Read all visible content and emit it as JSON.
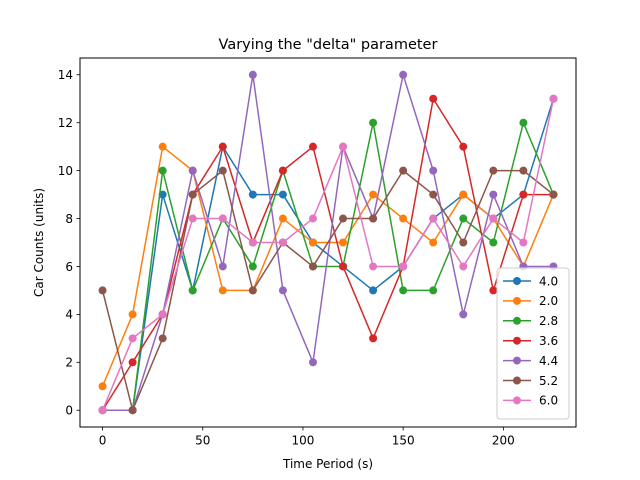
{
  "chart_data": {
    "type": "line",
    "title": "Varying the \"delta\" parameter",
    "xlabel": "Time Period (s)",
    "ylabel": "Car Counts (units)",
    "xlim": [
      -11.25,
      236.25
    ],
    "ylim": [
      -0.7,
      14.7
    ],
    "xticks": [
      0,
      50,
      100,
      150,
      200
    ],
    "yticks": [
      0,
      2,
      4,
      6,
      8,
      10,
      12,
      14
    ],
    "grid": false,
    "legend_position": "lower-right",
    "x": [
      0,
      15,
      30,
      45,
      60,
      75,
      90,
      105,
      120,
      135,
      150,
      165,
      180,
      195,
      210,
      225
    ],
    "series": [
      {
        "name": "4.0",
        "color": "#1f77b4",
        "values": [
          0,
          0,
          9,
          5,
          11,
          9,
          9,
          7,
          6,
          5,
          6,
          8,
          9,
          8,
          9,
          13
        ]
      },
      {
        "name": "2.0",
        "color": "#ff7f0e",
        "values": [
          1,
          4,
          11,
          10,
          5,
          5,
          8,
          7,
          7,
          9,
          8,
          7,
          9,
          8,
          6,
          9
        ]
      },
      {
        "name": "2.8",
        "color": "#2ca02c",
        "values": [
          0,
          0,
          10,
          5,
          8,
          6,
          10,
          6,
          6,
          12,
          5,
          5,
          8,
          7,
          12,
          9
        ]
      },
      {
        "name": "3.6",
        "color": "#d62728",
        "values": [
          0,
          2,
          4,
          9,
          11,
          7,
          10,
          11,
          6,
          3,
          6,
          13,
          11,
          5,
          9,
          9
        ]
      },
      {
        "name": "4.4",
        "color": "#9467bd",
        "values": [
          0,
          0,
          4,
          10,
          6,
          14,
          5,
          2,
          11,
          8,
          14,
          10,
          4,
          9,
          6,
          6
        ]
      },
      {
        "name": "5.2",
        "color": "#8c564b",
        "values": [
          5,
          0,
          3,
          9,
          10,
          5,
          7,
          6,
          8,
          8,
          10,
          9,
          7,
          10,
          10,
          9
        ]
      },
      {
        "name": "6.0",
        "color": "#e377c2",
        "values": [
          0,
          3,
          4,
          8,
          8,
          7,
          7,
          8,
          11,
          6,
          6,
          8,
          6,
          8,
          7,
          13
        ]
      }
    ]
  }
}
